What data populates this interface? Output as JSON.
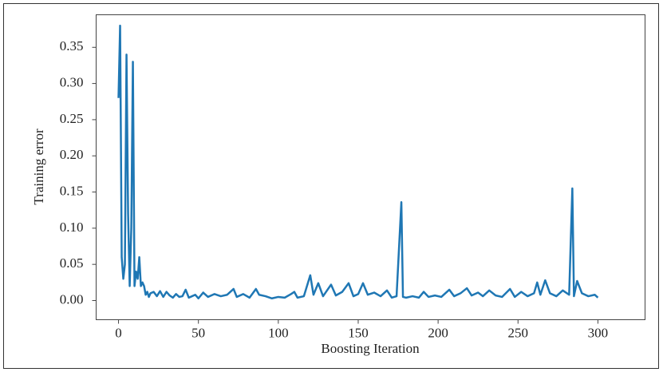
{
  "chart_data": {
    "type": "line",
    "xlabel": "Boosting Iteration",
    "ylabel": "Training error",
    "x": [
      0,
      1,
      2,
      3,
      4,
      5,
      6,
      7,
      8,
      9,
      10,
      11,
      12,
      13,
      14,
      15,
      16,
      17,
      18,
      19,
      20,
      22,
      24,
      26,
      28,
      30,
      32,
      34,
      36,
      38,
      40,
      42,
      44,
      46,
      48,
      50,
      53,
      56,
      60,
      64,
      68,
      72,
      74,
      78,
      82,
      86,
      88,
      92,
      96,
      100,
      104,
      108,
      110,
      112,
      116,
      120,
      122,
      125,
      128,
      133,
      136,
      140,
      144,
      147,
      150,
      153,
      156,
      160,
      164,
      168,
      171,
      174,
      177,
      178,
      180,
      184,
      188,
      191,
      194,
      198,
      202,
      207,
      210,
      214,
      218,
      221,
      225,
      228,
      232,
      236,
      240,
      245,
      248,
      252,
      256,
      260,
      262,
      264,
      267,
      270,
      274,
      278,
      282,
      284,
      285,
      287,
      290,
      294,
      298,
      300
    ],
    "series": [
      {
        "name": "Training error",
        "color": "#1f77b4",
        "values": [
          0.28,
          0.38,
          0.06,
          0.03,
          0.05,
          0.34,
          0.12,
          0.02,
          0.1,
          0.33,
          0.02,
          0.04,
          0.03,
          0.06,
          0.02,
          0.025,
          0.02,
          0.008,
          0.012,
          0.005,
          0.01,
          0.012,
          0.006,
          0.013,
          0.005,
          0.012,
          0.007,
          0.004,
          0.009,
          0.005,
          0.006,
          0.015,
          0.004,
          0.006,
          0.008,
          0.003,
          0.011,
          0.005,
          0.009,
          0.006,
          0.008,
          0.016,
          0.005,
          0.009,
          0.004,
          0.016,
          0.008,
          0.006,
          0.003,
          0.005,
          0.004,
          0.009,
          0.012,
          0.004,
          0.006,
          0.035,
          0.008,
          0.024,
          0.006,
          0.022,
          0.007,
          0.012,
          0.024,
          0.006,
          0.009,
          0.024,
          0.008,
          0.011,
          0.006,
          0.014,
          0.004,
          0.006,
          0.136,
          0.005,
          0.004,
          0.006,
          0.004,
          0.012,
          0.005,
          0.007,
          0.005,
          0.015,
          0.006,
          0.01,
          0.017,
          0.007,
          0.011,
          0.006,
          0.014,
          0.007,
          0.005,
          0.016,
          0.005,
          0.012,
          0.006,
          0.01,
          0.025,
          0.008,
          0.028,
          0.01,
          0.006,
          0.014,
          0.008,
          0.155,
          0.006,
          0.027,
          0.01,
          0.006,
          0.008,
          0.004
        ]
      }
    ],
    "xlim": [
      -14,
      329.5
    ],
    "ylim": [
      -0.0265,
      0.395
    ],
    "xticks": [
      0,
      50,
      100,
      150,
      200,
      250,
      300
    ],
    "yticks": [
      {
        "value": 0,
        "label": "0.00"
      },
      0.05,
      {
        "value": 0.1,
        "label": "0.10"
      },
      0.15,
      {
        "value": 0.2,
        "label": "0.20"
      },
      0.25,
      {
        "value": 0.3,
        "label": "0.30"
      },
      0.35
    ]
  }
}
